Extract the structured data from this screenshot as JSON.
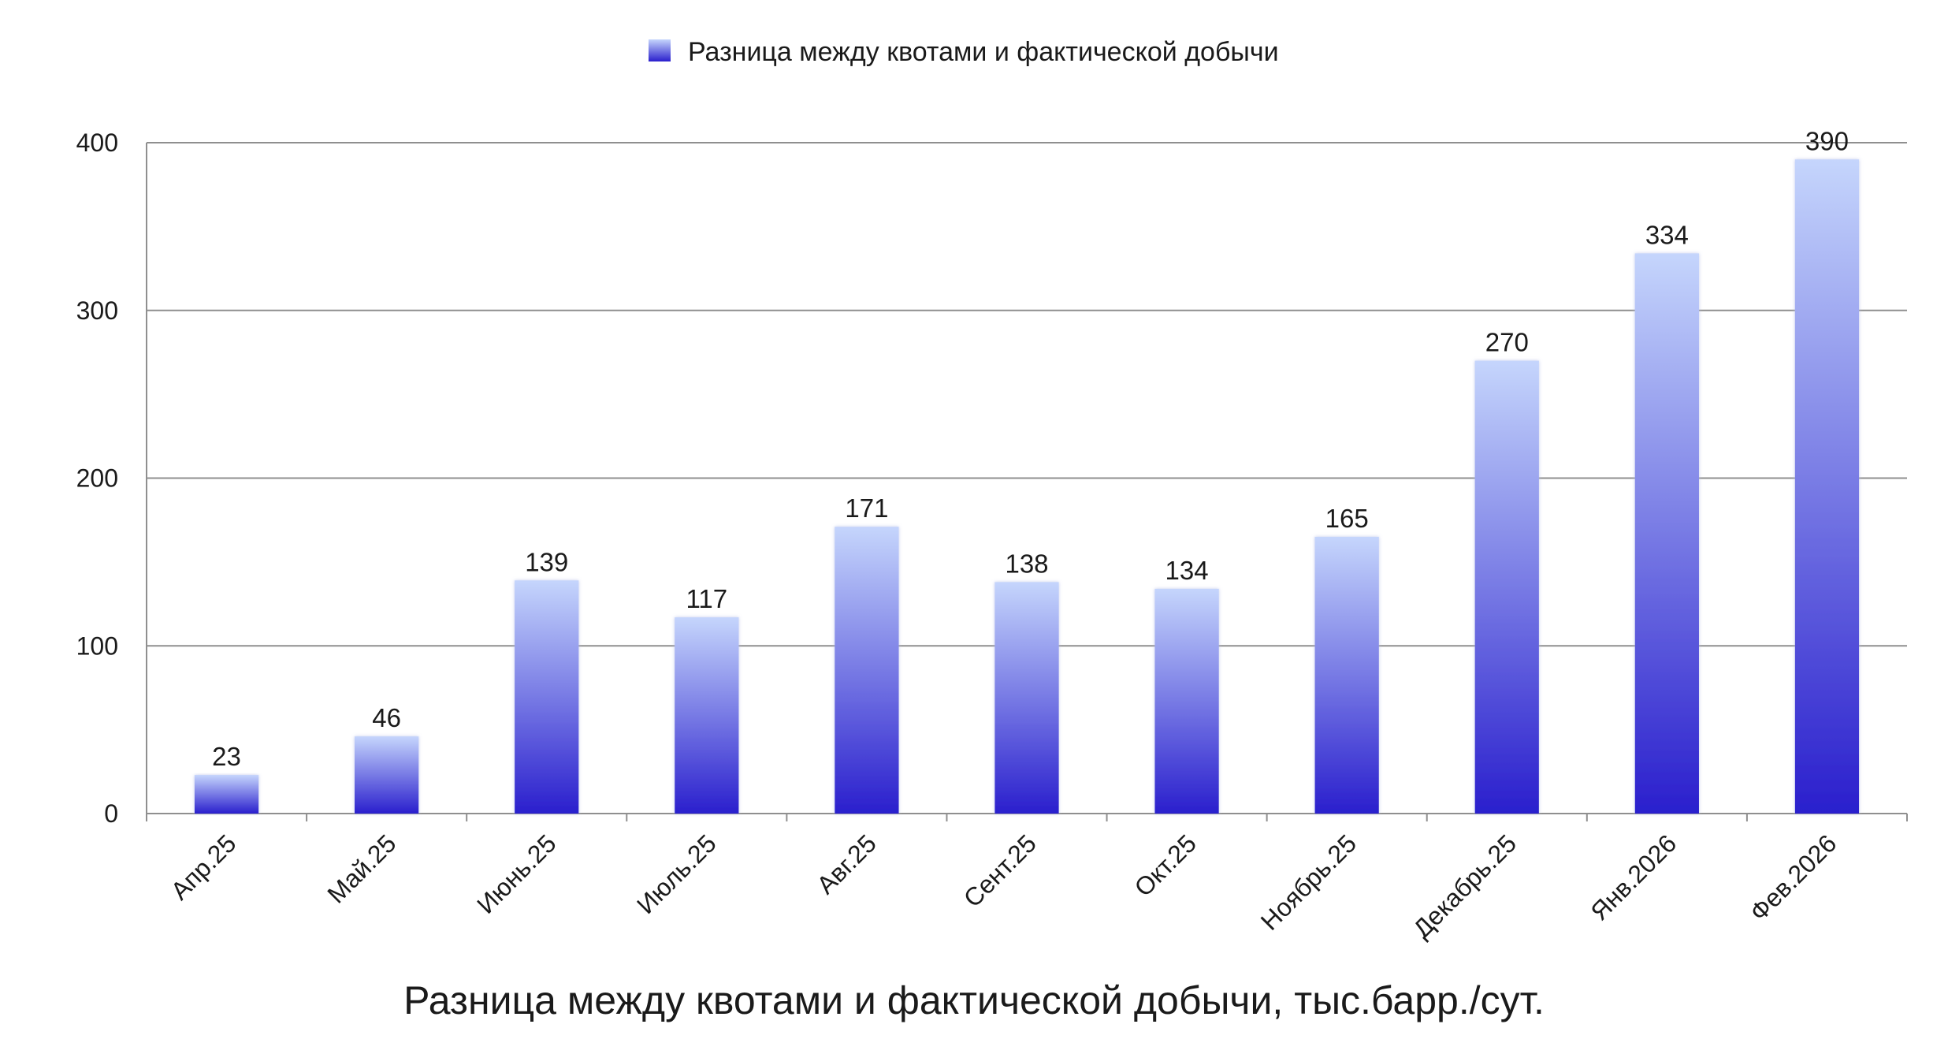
{
  "chart_data": {
    "type": "bar",
    "title": "",
    "caption": "Разница между квотами и фактической добычи, тыс.барр./сут.",
    "xlabel": "",
    "ylabel": "",
    "categories": [
      "Апр.25",
      "Май.25",
      "Июнь.25",
      "Июль.25",
      "Авг.25",
      "Сент.25",
      "Окт.25",
      "Ноябрь.25",
      "Декабрь.25",
      "Янв.2026",
      "Фев.2026"
    ],
    "series": [
      {
        "name": "Разница между квотами и фактической добычи",
        "values": [
          23,
          46,
          139,
          117,
          171,
          138,
          134,
          165,
          270,
          334,
          390
        ]
      }
    ],
    "ylim": [
      0,
      400
    ],
    "yticks": [
      0,
      100,
      200,
      300,
      400
    ],
    "grid": true,
    "legend_position": "top-center",
    "data_labels": true,
    "colors": {
      "bar_top": "#c5d5fc",
      "bar_bottom": "#2a1fcd",
      "grid": "#8f8f8f"
    }
  }
}
